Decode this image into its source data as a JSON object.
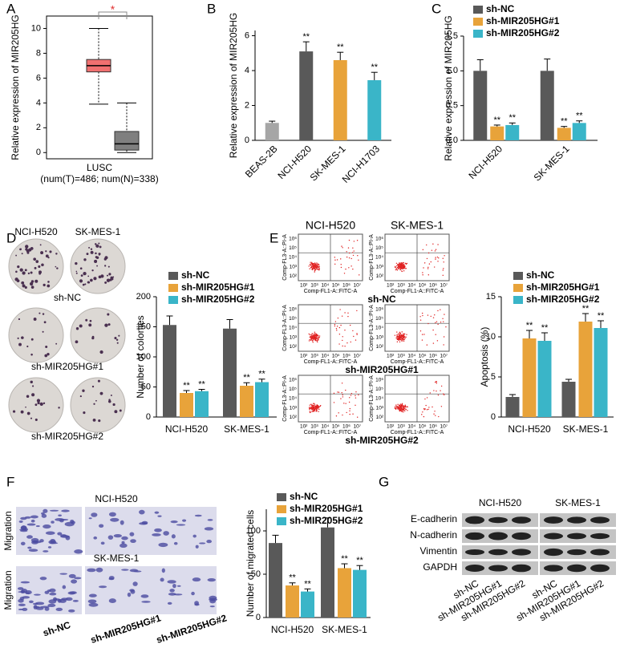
{
  "panel_labels": [
    "A",
    "B",
    "C",
    "D",
    "E",
    "F",
    "G"
  ],
  "chart_data": [
    {
      "type": "box",
      "y_label": "Relative expression of MIR205HG",
      "category": "LUSC",
      "x_label": "(num(T)=486; num(N)=338)",
      "annotation": "*",
      "boxes": [
        {
          "whisker_low": 3.9,
          "q1": 6.5,
          "median": 7.0,
          "q3": 7.5,
          "whisker_high": 10.0,
          "color": "#f07070"
        },
        {
          "whisker_low": 0,
          "q1": 0.2,
          "median": 0.7,
          "q3": 1.7,
          "whisker_high": 4.0,
          "color": "#7f7f7f"
        }
      ],
      "ylim": [
        -0.5,
        11
      ],
      "yticks": [
        0,
        2,
        4,
        6,
        8,
        10
      ]
    },
    {
      "type": "bar",
      "y_label": "Relative expression of MIR205HG",
      "categories": [
        "BEAS-2B",
        "NCI-H520",
        "SK-MES-1",
        "NCI-H1703"
      ],
      "values": [
        1,
        5.1,
        4.6,
        3.45
      ],
      "errors": [
        0.1,
        0.55,
        0.45,
        0.45
      ],
      "colors": [
        "#a6a6a6",
        "#595959",
        "#e8a33a",
        "#3ab5c8"
      ],
      "significance": [
        null,
        "**",
        "**",
        "**"
      ],
      "ylim": [
        0,
        6.3
      ],
      "yticks": [
        0,
        2,
        4,
        6
      ]
    },
    {
      "type": "bar",
      "y_label": "Relative expression of MIR205HG",
      "categories": [
        "NCI-H520",
        "SK-MES-1"
      ],
      "series": [
        {
          "name": "sh-NC",
          "color": "#595959",
          "values": [
            1,
            1
          ],
          "errors": [
            0.16,
            0.17
          ]
        },
        {
          "name": "sh-MIR205HG#1",
          "color": "#e8a33a",
          "values": [
            0.2,
            0.18
          ],
          "errors": [
            0.02,
            0.02
          ],
          "significance": [
            "**",
            "**"
          ]
        },
        {
          "name": "sh-MIR205HG#2",
          "color": "#3ab5c8",
          "values": [
            0.22,
            0.25
          ],
          "errors": [
            0.03,
            0.03
          ],
          "significance": [
            "**",
            "**"
          ]
        }
      ],
      "ylim": [
        0,
        1.5
      ],
      "yticks": [
        {
          "value": 0,
          "label": "0.0"
        },
        0.5,
        {
          "value": 1,
          "label": "1.0"
        },
        1.5
      ]
    },
    {
      "type": "bar",
      "y_label": "Number of colonies",
      "categories": [
        "NCI-H520",
        "SK-MES-1"
      ],
      "series": [
        {
          "name": "sh-NC",
          "color": "#595959",
          "values": [
            153,
            147
          ],
          "errors": [
            15,
            15
          ]
        },
        {
          "name": "sh-MIR205HG#1",
          "color": "#e8a33a",
          "values": [
            40,
            52
          ],
          "errors": [
            4,
            5
          ],
          "significance": [
            "**",
            "**"
          ]
        },
        {
          "name": "sh-MIR205HG#2",
          "color": "#3ab5c8",
          "values": [
            43,
            58
          ],
          "errors": [
            3,
            5
          ],
          "significance": [
            "**",
            "**"
          ]
        }
      ],
      "ylim": [
        0,
        200
      ],
      "yticks": [
        0,
        50,
        100,
        150,
        200
      ]
    },
    {
      "type": "bar",
      "y_label": "Apoptosis (%)",
      "categories": [
        "NCI-H520",
        "SK-MES-1"
      ],
      "series": [
        {
          "name": "sh-NC",
          "color": "#595959",
          "values": [
            2.5,
            4.4
          ],
          "errors": [
            0.3,
            0.3
          ]
        },
        {
          "name": "sh-MIR205HG#1",
          "color": "#e8a33a",
          "values": [
            9.8,
            11.9
          ],
          "errors": [
            1,
            1
          ],
          "significance": [
            "**",
            "**"
          ]
        },
        {
          "name": "sh-MIR205HG#2",
          "color": "#3ab5c8",
          "values": [
            9.5,
            11.1
          ],
          "errors": [
            1,
            0.9
          ],
          "significance": [
            "**",
            "**"
          ]
        }
      ],
      "ylim": [
        0,
        15
      ],
      "yticks": [
        0,
        5,
        10,
        15
      ]
    },
    {
      "type": "bar",
      "y_label": "Number of migrated cells",
      "categories": [
        "NCI-H520",
        "SK-MES-1"
      ],
      "series": [
        {
          "name": "sh-NC",
          "color": "#595959",
          "values": [
            86,
            104
          ],
          "errors": [
            9,
            11
          ]
        },
        {
          "name": "sh-MIR205HG#1",
          "color": "#e8a33a",
          "values": [
            37,
            57
          ],
          "errors": [
            3,
            5
          ],
          "significance": [
            "**",
            "**"
          ]
        },
        {
          "name": "sh-MIR205HG#2",
          "color": "#3ab5c8",
          "values": [
            30,
            55
          ],
          "errors": [
            3,
            5
          ],
          "significance": [
            "**",
            "**"
          ]
        }
      ],
      "ylim": [
        0,
        125
      ],
      "yticks": [
        0,
        50,
        100
      ]
    }
  ],
  "colony_assay": {
    "columns": [
      "NCI-H520",
      "SK-MES-1"
    ],
    "rows": [
      "sh-NC",
      "sh-MIR205HG#1",
      "sh-MIR205HG#2"
    ]
  },
  "flow_cytometry": {
    "columns": [
      "NCI-H520",
      "SK-MES-1"
    ],
    "rows": [
      "sh-NC",
      "sh-MIR205HG#1",
      "sh-MIR205HG#2"
    ],
    "x_label": "Comp-FL1-A::FITC-A",
    "y_label": "Comp-FL3-A::PI-A",
    "x_ticks": [
      "10²",
      "10³",
      "10⁴",
      "10⁵",
      "10⁶",
      "10⁷"
    ],
    "y_ticks": [
      "10⁶",
      "10⁵",
      "10⁴",
      "10³",
      "10²"
    ]
  },
  "migration_assay": {
    "rows": [
      "NCI-H520",
      "SK-MES-1"
    ],
    "side_label": "Migration",
    "columns": [
      "sh-NC",
      "sh-MIR205HG#1",
      "sh-MIR205HG#2"
    ]
  },
  "western_blot": {
    "cell_lines": [
      "NCI-H520",
      "SK-MES-1"
    ],
    "proteins": [
      "E-cadherin",
      "N-cadherin",
      "Vimentin",
      "GAPDH"
    ],
    "lanes": [
      "sh-NC",
      "sh-MIR205HG#1",
      "sh-MIR205HG#2"
    ]
  }
}
